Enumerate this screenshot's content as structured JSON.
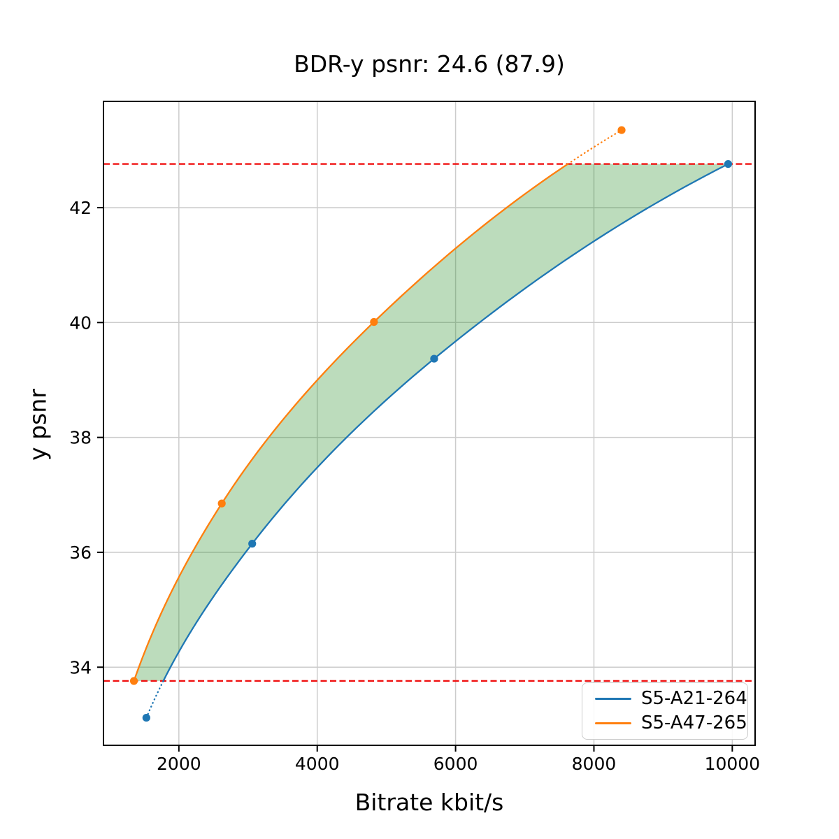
{
  "chart_data": {
    "type": "line",
    "title": "BDR-y psnr: 24.6 (87.9)",
    "xlabel": "Bitrate kbit/s",
    "ylabel": "y psnr",
    "xlim": [
      910,
      10330
    ],
    "ylim": [
      32.64,
      43.85
    ],
    "x_ticks": [
      "2000",
      "4000",
      "6000",
      "8000",
      "10000"
    ],
    "x_tick_values": [
      2000,
      4000,
      6000,
      8000,
      10000
    ],
    "y_ticks": [
      "34",
      "36",
      "38",
      "40",
      "42"
    ],
    "y_tick_values": [
      34,
      36,
      38,
      40,
      42
    ],
    "grid": true,
    "grid_color": "#cccccc",
    "legend_position": "lower right",
    "series": [
      {
        "name": "S5-A21-264",
        "color": "#1f77b4",
        "points": [
          [
            1530,
            33.12
          ],
          [
            3060,
            36.15
          ],
          [
            5690,
            39.37
          ],
          [
            9940,
            42.76
          ]
        ]
      },
      {
        "name": "S5-A47-265",
        "color": "#ff7f0e",
        "points": [
          [
            1350,
            33.76
          ],
          [
            2620,
            36.85
          ],
          [
            4820,
            40.01
          ],
          [
            8400,
            43.35
          ]
        ]
      }
    ],
    "ref_lines": {
      "color": "#f01010",
      "style": "dashed",
      "lower": 33.76,
      "upper": 42.76
    },
    "band_fill_color": "rgba(34,139,34,0.3)"
  }
}
